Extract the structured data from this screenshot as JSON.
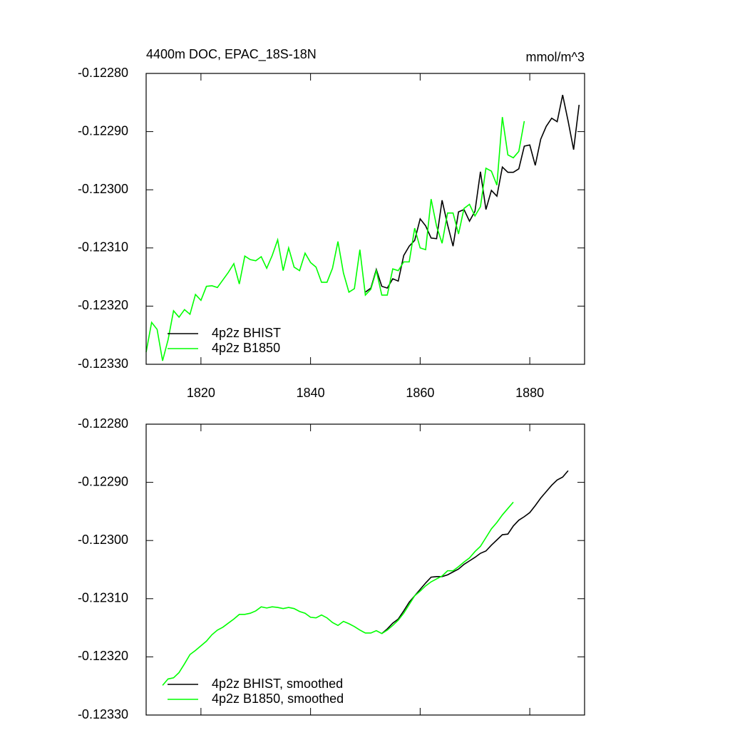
{
  "chart_data": [
    {
      "type": "line",
      "title": "4400m DOC, EPAC_18S-18N",
      "units": "mmol/m^3",
      "x": [
        1810,
        1811,
        1812,
        1813,
        1814,
        1815,
        1816,
        1817,
        1818,
        1819,
        1820,
        1821,
        1822,
        1823,
        1824,
        1825,
        1826,
        1827,
        1828,
        1829,
        1830,
        1831,
        1832,
        1833,
        1834,
        1835,
        1836,
        1837,
        1838,
        1839,
        1840,
        1841,
        1842,
        1843,
        1844,
        1845,
        1846,
        1847,
        1848,
        1849,
        1850,
        1851,
        1852,
        1853,
        1854,
        1855,
        1856,
        1857,
        1858,
        1859,
        1860,
        1861,
        1862,
        1863,
        1864,
        1865,
        1866,
        1867,
        1868,
        1869,
        1870,
        1871,
        1872,
        1873,
        1874,
        1875,
        1876,
        1877,
        1878,
        1879,
        1880,
        1881,
        1882,
        1883,
        1884,
        1885,
        1886,
        1887,
        1888,
        1889
      ],
      "series": [
        {
          "name": "4p2z BHIST",
          "color": "#000000",
          "values": [
            null,
            null,
            null,
            null,
            null,
            null,
            null,
            null,
            null,
            null,
            null,
            null,
            null,
            null,
            null,
            null,
            null,
            null,
            null,
            null,
            null,
            null,
            null,
            null,
            null,
            null,
            null,
            null,
            null,
            null,
            null,
            null,
            null,
            null,
            null,
            null,
            null,
            null,
            null,
            null,
            -0.123176,
            -0.123169,
            -0.123137,
            -0.123166,
            -0.123169,
            -0.123153,
            -0.123157,
            -0.123113,
            -0.123097,
            -0.123087,
            -0.12305,
            -0.123062,
            -0.123083,
            -0.123084,
            -0.123018,
            -0.12306,
            -0.123097,
            -0.123038,
            -0.123034,
            -0.123054,
            -0.123037,
            -0.122969,
            -0.123034,
            -0.123001,
            -0.123011,
            -0.122961,
            -0.12297,
            -0.12297,
            -0.122964,
            -0.122925,
            -0.122923,
            -0.122958,
            -0.122913,
            -0.122891,
            -0.122877,
            -0.122883,
            -0.122837,
            -0.122882,
            -0.122931,
            -0.122854
          ]
        },
        {
          "name": "4p2z B1850",
          "color": "#00ff00",
          "values": [
            -0.123279,
            -0.123228,
            -0.12324,
            -0.123294,
            -0.123258,
            -0.123208,
            -0.123219,
            -0.123206,
            -0.123214,
            -0.12318,
            -0.12319,
            -0.123166,
            -0.123165,
            -0.123168,
            -0.123155,
            -0.123142,
            -0.123127,
            -0.123162,
            -0.123114,
            -0.12312,
            -0.123122,
            -0.123115,
            -0.123135,
            -0.123113,
            -0.123086,
            -0.123139,
            -0.1231,
            -0.123133,
            -0.123139,
            -0.123109,
            -0.123125,
            -0.123133,
            -0.123159,
            -0.123159,
            -0.123135,
            -0.123089,
            -0.123143,
            -0.123176,
            -0.12317,
            -0.123103,
            -0.123181,
            -0.123171,
            -0.123139,
            -0.123181,
            -0.123181,
            -0.123136,
            -0.123139,
            -0.123124,
            -0.123124,
            -0.123066,
            -0.1231,
            -0.123103,
            -0.123016,
            -0.123063,
            -0.123092,
            -0.12304,
            -0.12304,
            -0.123076,
            -0.123032,
            -0.123025,
            -0.123045,
            -0.123029,
            -0.122963,
            -0.122968,
            -0.122992,
            -0.122875,
            -0.12294,
            -0.122945,
            -0.122934,
            -0.122882,
            null,
            null,
            null,
            null,
            null,
            null,
            null,
            null,
            null,
            null
          ]
        }
      ],
      "xlim": [
        1810,
        1890
      ],
      "xticks": [
        1820,
        1840,
        1860,
        1880
      ],
      "ylim": [
        -0.1233,
        -0.1228
      ],
      "yticks": [
        {
          "value": -0.1233,
          "label": "-0.12330"
        },
        {
          "value": -0.1232,
          "label": "-0.12320"
        },
        {
          "value": -0.1231,
          "label": "-0.12310"
        },
        {
          "value": -0.123,
          "label": "-0.12300"
        },
        {
          "value": -0.1229,
          "label": "-0.12290"
        },
        {
          "value": -0.1228,
          "label": "-0.12280"
        }
      ],
      "legend": "lower left"
    },
    {
      "type": "line",
      "x": [
        1813,
        1814,
        1815,
        1816,
        1817,
        1818,
        1819,
        1820,
        1821,
        1822,
        1823,
        1824,
        1825,
        1826,
        1827,
        1828,
        1829,
        1830,
        1831,
        1832,
        1833,
        1834,
        1835,
        1836,
        1837,
        1838,
        1839,
        1840,
        1841,
        1842,
        1843,
        1844,
        1845,
        1846,
        1847,
        1848,
        1849,
        1850,
        1851,
        1852,
        1853,
        1854,
        1855,
        1856,
        1857,
        1858,
        1859,
        1860,
        1861,
        1862,
        1863,
        1864,
        1865,
        1866,
        1867,
        1868,
        1869,
        1870,
        1871,
        1872,
        1873,
        1874,
        1875,
        1876,
        1877,
        1878,
        1879,
        1880,
        1881,
        1882,
        1883,
        1884,
        1885,
        1886,
        1887
      ],
      "series": [
        {
          "name": "4p2z BHIST, smoothed",
          "color": "#000000",
          "values": [
            null,
            null,
            null,
            null,
            null,
            null,
            null,
            null,
            null,
            null,
            null,
            null,
            null,
            null,
            null,
            null,
            null,
            null,
            null,
            null,
            null,
            null,
            null,
            null,
            null,
            null,
            null,
            null,
            null,
            null,
            null,
            null,
            null,
            null,
            null,
            null,
            null,
            null,
            null,
            null,
            -0.12316,
            -0.123152,
            -0.123142,
            -0.123135,
            -0.123121,
            -0.123106,
            -0.123095,
            -0.123084,
            -0.123073,
            -0.123063,
            -0.123062,
            -0.123062,
            -0.123059,
            -0.123054,
            -0.123049,
            -0.123041,
            -0.123035,
            -0.123029,
            -0.123022,
            -0.123018,
            -0.123008,
            -0.122999,
            -0.12299,
            -0.122989,
            -0.122975,
            -0.122965,
            -0.122959,
            -0.122952,
            -0.12294,
            -0.122927,
            -0.122916,
            -0.122905,
            -0.122896,
            -0.122891,
            -0.12288
          ]
        },
        {
          "name": "4p2z B1850, smoothed",
          "color": "#00ff00",
          "values": [
            -0.123249,
            -0.123238,
            -0.123236,
            -0.123227,
            -0.123212,
            -0.123196,
            -0.123189,
            -0.123181,
            -0.123173,
            -0.123162,
            -0.123154,
            -0.123149,
            -0.123142,
            -0.123135,
            -0.123127,
            -0.123127,
            -0.123125,
            -0.123121,
            -0.123114,
            -0.123116,
            -0.123114,
            -0.123115,
            -0.123117,
            -0.123115,
            -0.123117,
            -0.123122,
            -0.123125,
            -0.123132,
            -0.123133,
            -0.123128,
            -0.123133,
            -0.123141,
            -0.123146,
            -0.123139,
            -0.123143,
            -0.123148,
            -0.123154,
            -0.123159,
            -0.123159,
            -0.123155,
            -0.12316,
            -0.123154,
            -0.123146,
            -0.123137,
            -0.123125,
            -0.12311,
            -0.123095,
            -0.123087,
            -0.123078,
            -0.123071,
            -0.123066,
            -0.123061,
            -0.123052,
            -0.123052,
            -0.123045,
            -0.123037,
            -0.12303,
            -0.123019,
            -0.12301,
            -0.122995,
            -0.12298,
            -0.122969,
            -0.122956,
            -0.122945,
            -0.122934,
            null,
            null,
            null,
            null,
            null,
            null,
            null,
            null,
            null,
            null
          ]
        }
      ],
      "xlim": [
        1810,
        1890
      ],
      "xticks": [
        1820,
        1840,
        1860,
        1880
      ],
      "ylim": [
        -0.1233,
        -0.1228
      ],
      "yticks": [
        {
          "value": -0.1233,
          "label": "-0.12330"
        },
        {
          "value": -0.1232,
          "label": "-0.12320"
        },
        {
          "value": -0.1231,
          "label": "-0.12310"
        },
        {
          "value": -0.123,
          "label": "-0.12300"
        },
        {
          "value": -0.1229,
          "label": "-0.12290"
        },
        {
          "value": -0.1228,
          "label": "-0.12280"
        }
      ],
      "legend": "lower left"
    }
  ]
}
